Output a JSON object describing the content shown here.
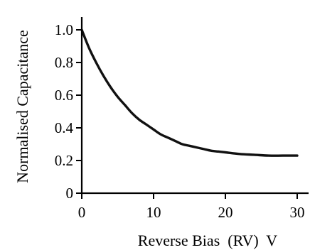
{
  "chart_data": {
    "type": "line",
    "title": "",
    "xlabel": "Reverse Bias  (RV)  V",
    "ylabel": "Normalised Capacitance",
    "xlim": [
      0,
      30
    ],
    "ylim": [
      0,
      1.0
    ],
    "x_ticks": [
      0,
      10,
      20,
      30
    ],
    "x_tick_labels": [
      "0",
      "10",
      "20",
      "30"
    ],
    "y_ticks": [
      0,
      0.2,
      0.4,
      0.6,
      0.8,
      1.0
    ],
    "y_tick_labels": [
      "0",
      "0.2",
      "0.4",
      "0.6",
      "0.8",
      "1.0"
    ],
    "grid": false,
    "legend": "none",
    "line_color": "#111111",
    "series": [
      {
        "x": [
          0,
          1,
          2,
          3,
          4,
          5,
          6,
          7,
          8,
          9,
          10,
          11,
          12,
          13,
          14,
          15,
          16,
          17,
          18,
          19,
          20,
          22,
          24,
          26,
          28,
          30
        ],
        "values": [
          1.0,
          0.89,
          0.8,
          0.72,
          0.65,
          0.59,
          0.54,
          0.49,
          0.45,
          0.42,
          0.39,
          0.36,
          0.34,
          0.32,
          0.3,
          0.29,
          0.28,
          0.27,
          0.26,
          0.255,
          0.25,
          0.24,
          0.235,
          0.23,
          0.23,
          0.23
        ]
      }
    ]
  }
}
